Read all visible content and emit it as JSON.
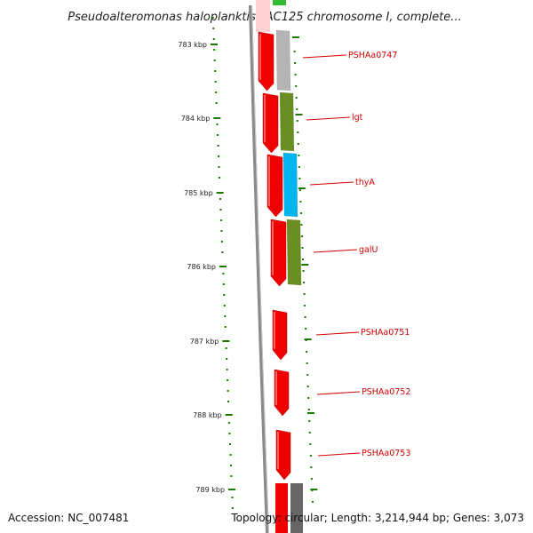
{
  "map": {
    "title": "Pseudoalteromonas haloplanktis TAC125 chromosome I, complete..."
  },
  "footer": {
    "accession": "Accession: NC_007481",
    "summary": "Topology: circular; Length: 3,214,944 bp; Genes: 3,073"
  },
  "scale": {
    "labels": [
      "783 kbp",
      "784 kbp",
      "785 kbp",
      "786 kbp",
      "787 kbp",
      "788 kbp",
      "789 kbp"
    ]
  },
  "colors": {
    "forward_strand": "#ee0000",
    "tick": "#1a7a00",
    "label": "#d40000",
    "backbone": "#8a8a8a"
  },
  "genes": [
    {
      "name": "PSHAa0747",
      "category_color": "#b4b4b4"
    },
    {
      "name": "lgt",
      "category_color": "#6b8e23"
    },
    {
      "name": "thyA",
      "category_color": "#00b4ee"
    },
    {
      "name": "galU",
      "category_color": "#6b8e23"
    },
    {
      "name": "PSHAa0751",
      "category_color": ""
    },
    {
      "name": "PSHAa0752",
      "category_color": ""
    },
    {
      "name": "PSHAa0753",
      "category_color": ""
    }
  ]
}
